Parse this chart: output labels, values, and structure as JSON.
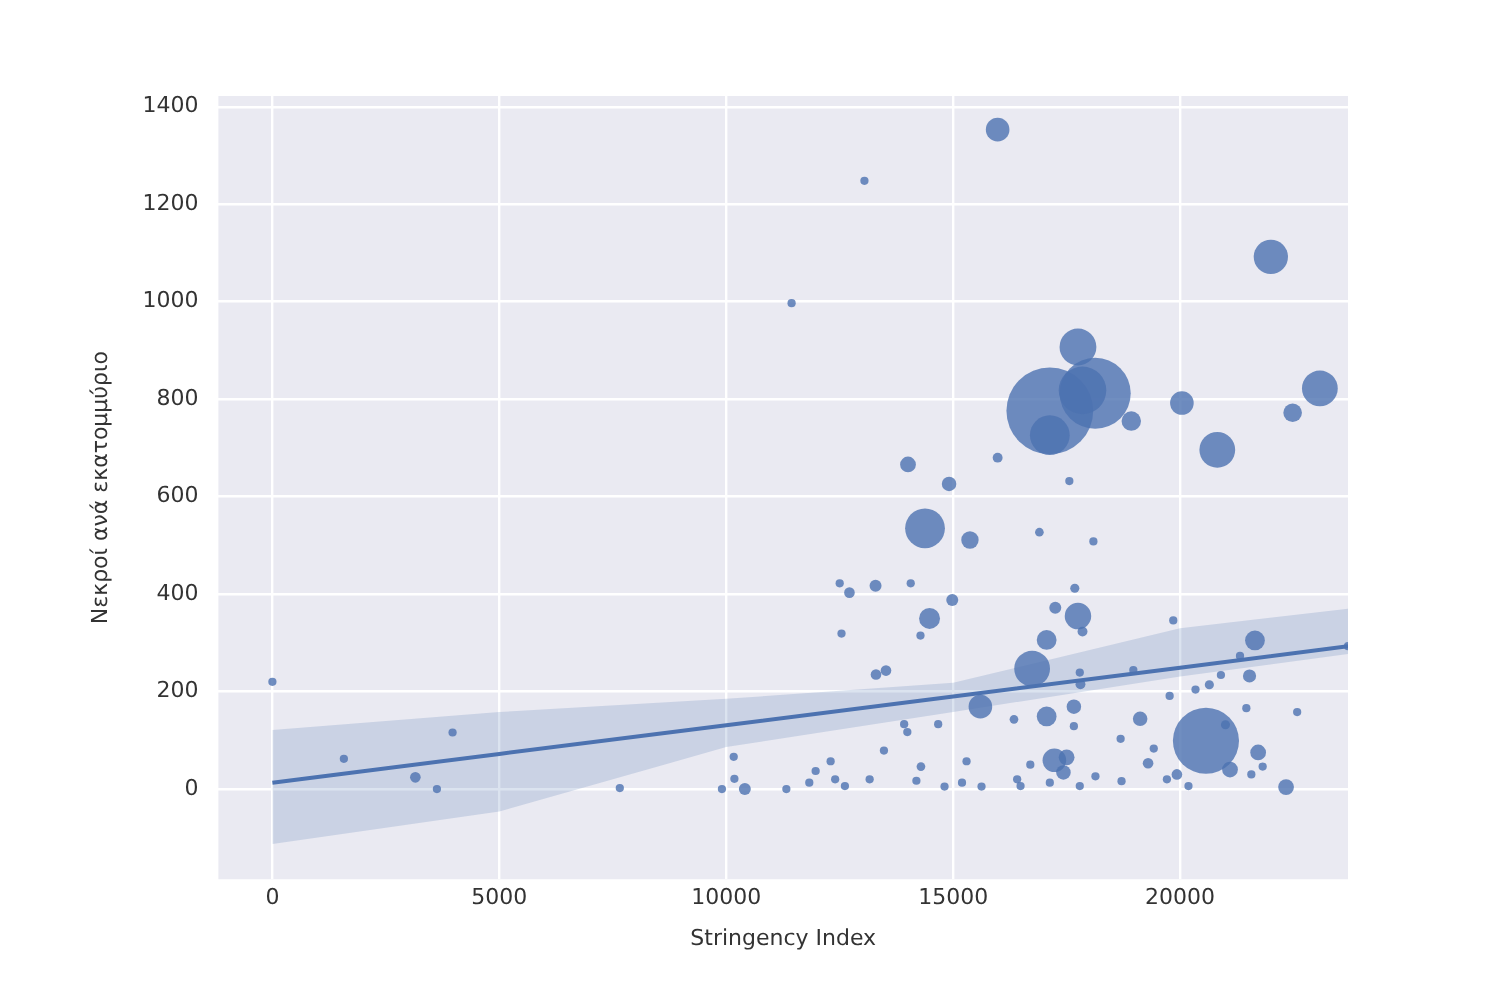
{
  "chart_data": {
    "type": "bubble",
    "xlabel": "Stringency Index",
    "ylabel": "Νεκροί ανά εκατομμύριο",
    "xlim": [
      -1190,
      23700
    ],
    "ylim": [
      -185,
      1422
    ],
    "xticks": [
      0,
      5000,
      10000,
      15000,
      20000
    ],
    "yticks": [
      0,
      200,
      400,
      600,
      800,
      1000,
      1200,
      1400
    ],
    "grid": true,
    "series": [
      {
        "color": "#4c72b0",
        "x": [
          15980,
          13045,
          11440,
          22000,
          17750,
          17130,
          18130,
          17850,
          17130,
          18925,
          20040,
          20820,
          22480,
          23080,
          14005,
          14910,
          15980,
          17560,
          14380,
          15370,
          16900,
          18090,
          12500,
          12715,
          13290,
          14065,
          14980,
          14480,
          12540,
          14280,
          17680,
          17250,
          17750,
          17850,
          17060,
          19850,
          21650,
          16740,
          13300,
          13520,
          17790,
          17805,
          18970,
          15600,
          16340,
          17060,
          17660,
          17660,
          19120,
          19770,
          20340,
          20645,
          20900,
          21320,
          21530,
          21460,
          22580,
          20570,
          21000,
          21720,
          21100,
          21820,
          21570,
          22335,
          19930,
          19295,
          19420,
          18690,
          17230,
          17500,
          17430,
          17790,
          14290,
          13920,
          13990,
          14670,
          15295,
          13475,
          12300,
          11970,
          12400,
          13160,
          11830,
          12615,
          11325,
          14190,
          14810,
          15195,
          15625,
          16410,
          16485,
          17130,
          18135,
          18710,
          19710,
          20185,
          16700,
          0,
          3970,
          1575,
          3150,
          3625,
          7655,
          9905,
          10410,
          10165,
          10180,
          23700
        ],
        "values": [
          1353,
          1248,
          997,
          1092,
          907,
          776,
          812,
          818,
          726,
          755,
          792,
          696,
          772,
          822,
          666,
          626,
          680,
          632,
          535,
          511,
          527,
          508,
          422,
          403,
          417,
          422,
          388,
          350,
          319,
          315,
          412,
          372,
          355,
          323,
          306,
          346,
          305,
          247,
          235,
          243,
          239,
          215,
          244,
          169,
          143,
          149,
          169,
          129,
          144,
          191,
          204,
          214,
          234,
          273,
          232,
          166,
          158,
          99,
          132,
          75,
          40,
          46,
          30,
          4,
          30,
          53,
          83,
          103,
          59,
          65,
          34,
          6,
          46,
          133,
          117,
          133,
          57,
          79,
          57,
          37,
          20,
          20,
          13,
          6,
          0,
          17,
          5,
          13,
          5,
          20,
          6,
          13,
          26,
          16,
          20,
          6,
          50,
          220,
          116,
          62,
          24,
          0,
          2,
          0,
          0,
          66,
          21,
          293
        ],
        "sizes": [
          0.074,
          0.009,
          0.009,
          0.156,
          0.18,
          1,
          0.67,
          0.3,
          0.21,
          0.05,
          0.074,
          0.17,
          0.046,
          0.17,
          0.033,
          0.028,
          0.013,
          0.009,
          0.21,
          0.04,
          0.01,
          0.009,
          0.009,
          0.015,
          0.019,
          0.009,
          0.019,
          0.058,
          0.009,
          0.009,
          0.011,
          0.019,
          0.093,
          0.013,
          0.052,
          0.009,
          0.052,
          0.17,
          0.015,
          0.015,
          0.009,
          0.013,
          0.009,
          0.074,
          0.01,
          0.052,
          0.028,
          0.009,
          0.028,
          0.009,
          0.009,
          0.011,
          0.009,
          0.009,
          0.023,
          0.009,
          0.009,
          0.58,
          0.011,
          0.033,
          0.033,
          0.009,
          0.009,
          0.033,
          0.015,
          0.015,
          0.009,
          0.009,
          0.074,
          0.033,
          0.028,
          0.009,
          0.01,
          0.009,
          0.009,
          0.009,
          0.009,
          0.009,
          0.009,
          0.009,
          0.009,
          0.009,
          0.009,
          0.009,
          0.009,
          0.009,
          0.009,
          0.009,
          0.009,
          0.009,
          0.009,
          0.009,
          0.009,
          0.009,
          0.009,
          0.009,
          0.009,
          0.009,
          0.009,
          0.009,
          0.015,
          0.009,
          0.009,
          0.009,
          0.019,
          0.009,
          0.009,
          0.009
        ]
      },
      {
        "type": "line",
        "color": "#4c72b0",
        "x": [
          0,
          5000,
          10000,
          15000,
          20000,
          23700
        ],
        "values": [
          13,
          72,
          131,
          190,
          249,
          293
        ],
        "lower": [
          -113,
          -46,
          86,
          158,
          231,
          277
        ],
        "upper": [
          121,
          158,
          185,
          218,
          330,
          370
        ]
      }
    ]
  }
}
